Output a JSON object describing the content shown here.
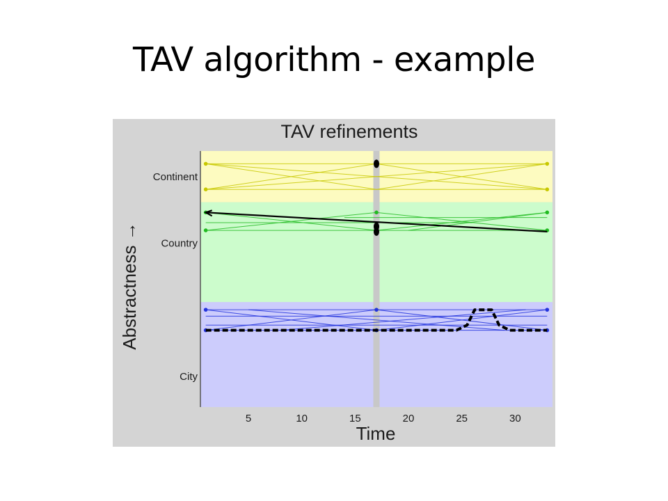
{
  "slide": {
    "title": "TAV algorithm - example"
  },
  "chart_data": {
    "type": "line",
    "title": "TAV refinements",
    "xlabel": "Time",
    "ylabel": "Abstractness →",
    "xlim": [
      0.5,
      33.5
    ],
    "x_ticks": [
      5,
      10,
      15,
      20,
      25,
      30
    ],
    "y_categories": [
      "Continent",
      "Country",
      "City"
    ],
    "bands": [
      {
        "label": "Continent",
        "y_from": 8.0,
        "y_to": 10.0,
        "color": "#fdfbc0"
      },
      {
        "label": "Country",
        "y_from": 4.1,
        "y_to": 8.0,
        "color": "#ccfccc"
      },
      {
        "label": "City",
        "y_from": 0.0,
        "y_to": 4.1,
        "color": "#ccccfc"
      }
    ],
    "highlight_time": 17,
    "highlight_color": "#c8c8c8",
    "category_ticks": [
      {
        "label": "Continent",
        "y": 9.0
      },
      {
        "label": "Country",
        "y": 6.4
      },
      {
        "label": "City",
        "y": 1.2
      }
    ],
    "level_colors": {
      "continent": "#c8c800",
      "country": "#22bb22",
      "city": "#2233dd"
    },
    "levels_y": {
      "continent": [
        9.5,
        8.5
      ],
      "country": [
        7.6,
        6.9
      ],
      "city": [
        3.8,
        3.0
      ]
    },
    "crossing_lines": {
      "continent": [
        {
          "x": [
            1,
            33
          ],
          "y": [
            9.5,
            8.5
          ]
        },
        {
          "x": [
            1,
            33
          ],
          "y": [
            8.5,
            9.5
          ]
        },
        {
          "x": [
            1,
            17
          ],
          "y": [
            9.5,
            8.5
          ]
        },
        {
          "x": [
            17,
            33
          ],
          "y": [
            8.5,
            9.5
          ]
        },
        {
          "x": [
            1,
            17
          ],
          "y": [
            8.5,
            9.5
          ]
        },
        {
          "x": [
            17,
            33
          ],
          "y": [
            9.5,
            8.5
          ]
        },
        {
          "x": [
            1,
            33
          ],
          "y": [
            9.5,
            9.5
          ]
        },
        {
          "x": [
            1,
            33
          ],
          "y": [
            8.5,
            8.5
          ]
        }
      ],
      "country": [
        {
          "x": [
            1,
            17
          ],
          "y": [
            7.6,
            6.9
          ]
        },
        {
          "x": [
            17,
            33
          ],
          "y": [
            6.9,
            7.6
          ]
        },
        {
          "x": [
            1,
            17
          ],
          "y": [
            6.9,
            7.6
          ]
        },
        {
          "x": [
            17,
            33
          ],
          "y": [
            7.6,
            6.9
          ]
        },
        {
          "x": [
            1,
            33
          ],
          "y": [
            6.9,
            6.9
          ]
        },
        {
          "x": [
            14,
            33
          ],
          "y": [
            7.4,
            7.4
          ]
        },
        {
          "x": [
            1,
            26
          ],
          "y": [
            7.2,
            7.2
          ]
        },
        {
          "x": [
            20,
            33
          ],
          "y": [
            6.9,
            7.6
          ]
        }
      ],
      "city": [
        {
          "x": [
            1,
            17
          ],
          "y": [
            3.8,
            3.0
          ]
        },
        {
          "x": [
            1,
            17
          ],
          "y": [
            3.0,
            3.8
          ]
        },
        {
          "x": [
            17,
            33
          ],
          "y": [
            3.8,
            3.0
          ]
        },
        {
          "x": [
            17,
            33
          ],
          "y": [
            3.0,
            3.8
          ]
        },
        {
          "x": [
            1,
            33
          ],
          "y": [
            3.8,
            3.8
          ]
        },
        {
          "x": [
            1,
            33
          ],
          "y": [
            3.0,
            3.0
          ]
        },
        {
          "x": [
            1,
            33
          ],
          "y": [
            3.55,
            3.55
          ]
        },
        {
          "x": [
            1,
            33
          ],
          "y": [
            3.2,
            3.2
          ]
        },
        {
          "x": [
            5,
            29
          ],
          "y": [
            3.8,
            3.0
          ]
        },
        {
          "x": [
            8,
            31
          ],
          "y": [
            3.0,
            3.8
          ]
        }
      ]
    },
    "points": {
      "continent": {
        "x": [
          1,
          1,
          17,
          33,
          33
        ],
        "y": [
          9.5,
          8.5,
          9.5,
          9.5,
          8.5
        ]
      },
      "country": {
        "x": [
          1,
          1,
          17,
          33,
          33
        ],
        "y": [
          7.6,
          6.9,
          7.6,
          7.6,
          6.9
        ]
      },
      "city": {
        "x": [
          1,
          1,
          17,
          17,
          33,
          33
        ],
        "y": [
          3.8,
          3.0,
          3.8,
          3.0,
          3.8,
          3.0
        ]
      }
    },
    "series": [
      {
        "style": "solid",
        "color": "#000000",
        "x": [
          1,
          33
        ],
        "y": [
          7.6,
          6.85
        ]
      },
      {
        "style": "dashed",
        "color": "#000000",
        "x": [
          1,
          24.5,
          25.5,
          26.2,
          27.8,
          28.5,
          29.5,
          33
        ],
        "y": [
          3.0,
          3.0,
          3.2,
          3.8,
          3.8,
          3.2,
          3.0,
          3.0
        ]
      }
    ],
    "highlight_markers": {
      "x": [
        17,
        17,
        17
      ],
      "y": [
        9.5,
        7.05,
        6.85
      ]
    },
    "colors": {
      "panel_background": "#d4d4d4",
      "axis": "#555555"
    }
  }
}
